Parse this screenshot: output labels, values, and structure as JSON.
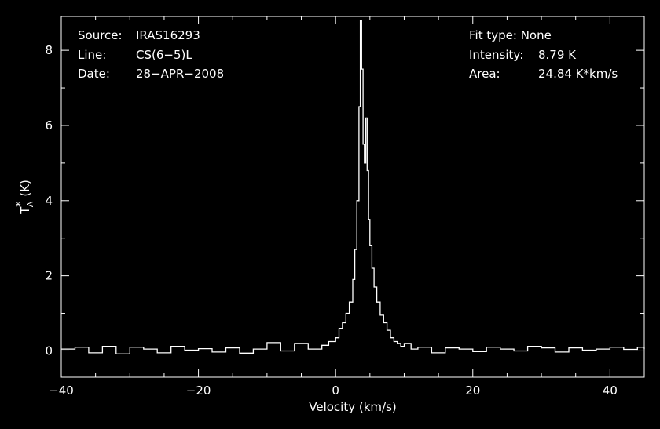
{
  "header": {
    "source_label": "Source:",
    "source_value": "IRAS16293",
    "line_label": "Line:",
    "line_value": "CS(6−5)L",
    "date_label": "Date:",
    "date_value": "28−APR−2008",
    "fit_label": "Fit type:",
    "fit_value": "None",
    "intensity_label": "Intensity:",
    "intensity_value": "8.79 K",
    "area_label": "Area:",
    "area_value": "24.84 K*km/s"
  },
  "colors": {
    "background": "#000000",
    "axes": "#ffffff",
    "spectrum": "#ffffff",
    "baseline": "#ff0000"
  },
  "chart_data": {
    "type": "line",
    "title": "",
    "xlabel": "Velocity (km/s)",
    "ylabel": "T",
    "ylabel_sup": "*",
    "ylabel_sub": "A",
    "ylabel_unit": "(K)",
    "xlim": [
      -40,
      45
    ],
    "ylim": [
      -0.7,
      8.9
    ],
    "xticks": [
      -40,
      -20,
      0,
      20,
      40
    ],
    "xtick_labels": [
      "−40",
      "−20",
      "0",
      "20",
      "40"
    ],
    "yticks": [
      0,
      2,
      4,
      6,
      8
    ],
    "ytick_labels": [
      "0",
      "2",
      "4",
      "6",
      "8"
    ],
    "baseline_y": 0,
    "grid": false,
    "series": [
      {
        "x": [
          -40,
          -38,
          -36,
          -34,
          -32,
          -30,
          -28,
          -26,
          -24,
          -22,
          -20,
          -18,
          -16,
          -14,
          -12,
          -10,
          -8,
          -6,
          -4,
          -2,
          -1,
          0,
          0.5,
          1,
          1.5,
          2,
          2.5,
          2.8,
          3.1,
          3.4,
          3.6,
          3.8,
          4.0,
          4.2,
          4.4,
          4.6,
          4.8,
          5.0,
          5.3,
          5.6,
          6.0,
          6.5,
          7.0,
          7.5,
          8.0,
          8.5,
          9.0,
          9.5,
          10,
          11,
          12,
          14,
          16,
          18,
          20,
          22,
          24,
          26,
          28,
          30,
          32,
          34,
          36,
          38,
          40,
          42,
          44,
          45
        ],
        "y": [
          0.05,
          0.1,
          -0.05,
          0.12,
          -0.08,
          0.1,
          0.05,
          -0.05,
          0.12,
          0.02,
          0.06,
          -0.03,
          0.08,
          -0.06,
          0.05,
          0.22,
          0.0,
          0.2,
          0.05,
          0.15,
          0.25,
          0.35,
          0.6,
          0.75,
          1.0,
          1.3,
          1.9,
          2.7,
          4.0,
          6.5,
          8.79,
          7.5,
          5.5,
          5.0,
          6.2,
          4.8,
          3.5,
          2.8,
          2.2,
          1.7,
          1.3,
          0.95,
          0.75,
          0.55,
          0.35,
          0.25,
          0.2,
          0.12,
          0.2,
          0.05,
          0.1,
          -0.05,
          0.08,
          0.05,
          -0.02,
          0.1,
          0.05,
          0.0,
          0.12,
          0.08,
          -0.03,
          0.08,
          0.02,
          0.05,
          0.1,
          0.04,
          0.1,
          0.05
        ]
      }
    ]
  }
}
